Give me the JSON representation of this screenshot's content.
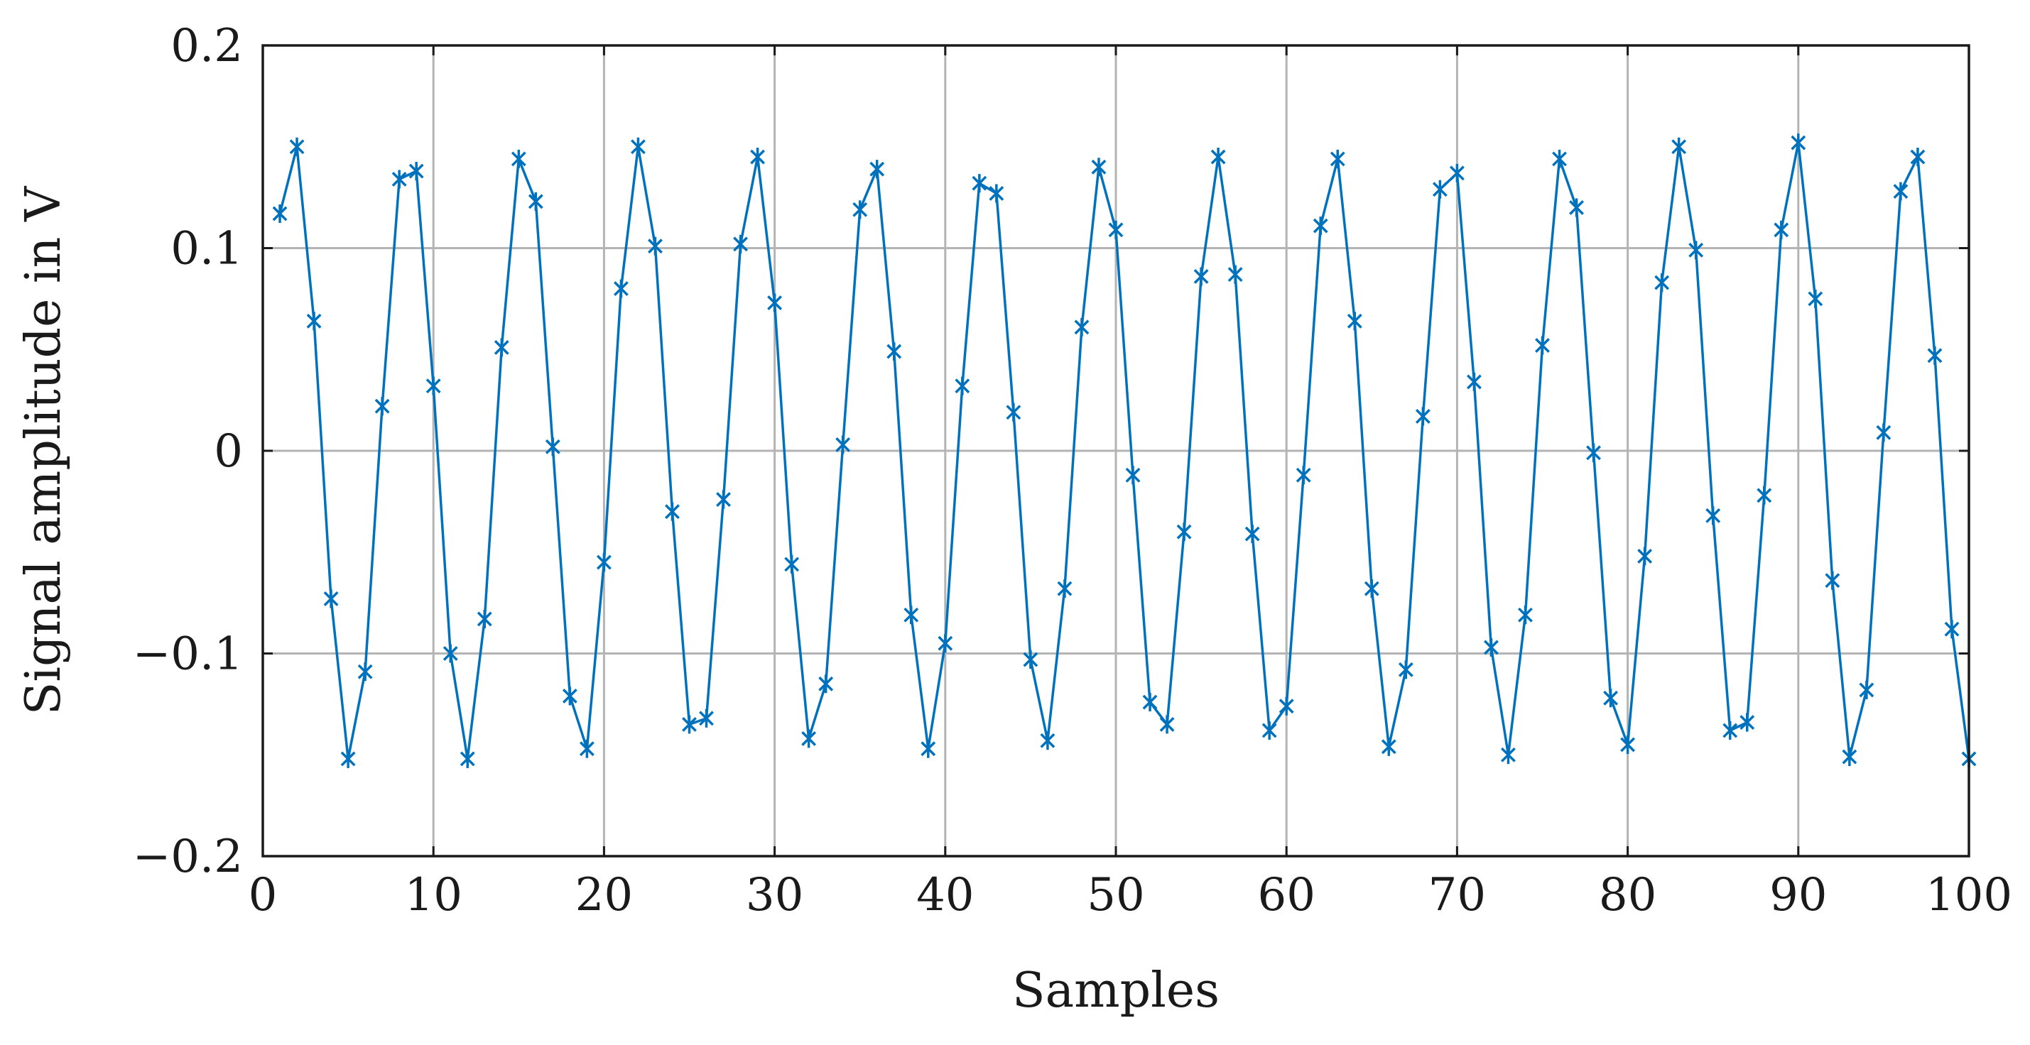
{
  "chart_data": {
    "type": "line",
    "xlabel": "Samples",
    "ylabel": "Signal amplitude in V",
    "xlim": [
      0,
      100
    ],
    "ylim": [
      -0.2,
      0.2
    ],
    "xticks": [
      0,
      10,
      20,
      30,
      40,
      50,
      60,
      70,
      80,
      90,
      100
    ],
    "yticks": [
      -0.2,
      -0.1,
      0,
      0.1,
      0.2
    ],
    "ytick_labels": [
      "−0.2",
      "−0.1",
      "0",
      "0.1",
      "0.2"
    ],
    "xtick_labels": [
      "0",
      "10",
      "20",
      "30",
      "40",
      "50",
      "60",
      "70",
      "80",
      "90",
      "100"
    ],
    "grid": true,
    "series": [
      {
        "color": "#0072bd",
        "marker": "asterisk",
        "x": [
          1,
          2,
          3,
          4,
          5,
          6,
          7,
          8,
          9,
          10,
          11,
          12,
          13,
          14,
          15,
          16,
          17,
          18,
          19,
          20,
          21,
          22,
          23,
          24,
          25,
          26,
          27,
          28,
          29,
          30,
          31,
          32,
          33,
          34,
          35,
          36,
          37,
          38,
          39,
          40,
          41,
          42,
          43,
          44,
          45,
          46,
          47,
          48,
          49,
          50,
          51,
          52,
          53,
          54,
          55,
          56,
          57,
          58,
          59,
          60,
          61,
          62,
          63,
          64,
          65,
          66,
          67,
          68,
          69,
          70,
          71,
          72,
          73,
          74,
          75,
          76,
          77,
          78,
          79,
          80,
          81,
          82,
          83,
          84,
          85,
          86,
          87,
          88,
          89,
          90,
          91,
          92,
          93,
          94,
          95,
          96,
          97,
          98,
          99,
          100
        ],
        "values": [
          0.117,
          0.15,
          0.064,
          -0.073,
          -0.152,
          -0.109,
          0.022,
          0.134,
          0.138,
          0.032,
          -0.1,
          -0.152,
          -0.083,
          0.051,
          0.144,
          0.123,
          0.002,
          -0.121,
          -0.147,
          -0.055,
          0.08,
          0.15,
          0.101,
          -0.03,
          -0.135,
          -0.132,
          -0.024,
          0.102,
          0.145,
          0.073,
          -0.056,
          -0.142,
          -0.115,
          0.003,
          0.119,
          0.139,
          0.049,
          -0.081,
          -0.147,
          -0.095,
          0.032,
          0.132,
          0.127,
          0.019,
          -0.103,
          -0.143,
          -0.068,
          0.061,
          0.14,
          0.109,
          -0.012,
          -0.124,
          -0.135,
          -0.04,
          0.086,
          0.145,
          0.087,
          -0.041,
          -0.138,
          -0.126,
          -0.012,
          0.111,
          0.144,
          0.064,
          -0.068,
          -0.146,
          -0.108,
          0.017,
          0.129,
          0.137,
          0.034,
          -0.097,
          -0.15,
          -0.081,
          0.052,
          0.144,
          0.12,
          -0.001,
          -0.122,
          -0.145,
          -0.052,
          0.083,
          0.15,
          0.099,
          -0.032,
          -0.138,
          -0.134,
          -0.022,
          0.109,
          0.152,
          0.075,
          -0.064,
          -0.151,
          -0.118,
          0.009,
          0.128,
          0.145,
          0.047,
          -0.088,
          -0.152
        ]
      }
    ]
  }
}
